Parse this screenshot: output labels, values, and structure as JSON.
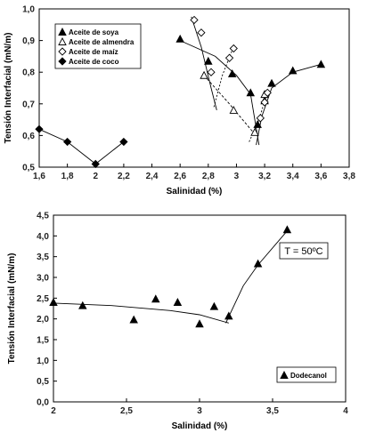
{
  "chart_data": [
    {
      "type": "scatter",
      "title": "",
      "xlabel": "Salinidad (%)",
      "ylabel": "Tensión Interfacial (mN/m)",
      "xlim": [
        1.6,
        3.8
      ],
      "ylim": [
        0.5,
        1.0
      ],
      "x_ticks": [
        "1,6",
        "1,8",
        "2",
        "2,2",
        "2,4",
        "2,6",
        "2,8",
        "3",
        "3,2",
        "3,4",
        "3,6",
        "3,8"
      ],
      "y_ticks": [
        "0,5",
        "0,6",
        "0,7",
        "0,8",
        "0,9",
        "1,0"
      ],
      "legend_position": "top-left",
      "series": [
        {
          "name": "Aceite de soya",
          "marker": "triangle-filled",
          "points": [
            [
              2.6,
              0.905
            ],
            [
              2.8,
              0.835
            ],
            [
              2.97,
              0.795
            ],
            [
              3.1,
              0.735
            ],
            [
              3.15,
              0.635
            ],
            [
              3.2,
              0.71
            ],
            [
              3.25,
              0.765
            ],
            [
              3.4,
              0.805
            ],
            [
              3.6,
              0.825
            ]
          ],
          "fit_left": [
            [
              2.6,
              0.9
            ],
            [
              2.85,
              0.85
            ],
            [
              3.0,
              0.79
            ],
            [
              3.1,
              0.73
            ],
            [
              3.16,
              0.57
            ]
          ],
          "fit_right": [
            [
              3.14,
              0.57
            ],
            [
              3.18,
              0.66
            ],
            [
              3.25,
              0.75
            ],
            [
              3.4,
              0.8
            ],
            [
              3.6,
              0.825
            ]
          ]
        },
        {
          "name": "Aceite de almendra",
          "marker": "triangle-open",
          "points": [
            [
              2.77,
              0.79
            ],
            [
              2.98,
              0.68
            ],
            [
              3.13,
              0.61
            ],
            [
              3.2,
              0.73
            ]
          ],
          "fit_left": [
            [
              2.77,
              0.79
            ],
            [
              2.95,
              0.7
            ],
            [
              3.1,
              0.62
            ],
            [
              3.14,
              0.6
            ]
          ],
          "fit_right": []
        },
        {
          "name": "Aceite de maíz",
          "marker": "diamond-open",
          "points": [
            [
              2.7,
              0.965
            ],
            [
              2.75,
              0.925
            ],
            [
              2.82,
              0.8
            ],
            [
              2.95,
              0.845
            ],
            [
              2.98,
              0.875
            ],
            [
              3.17,
              0.655
            ],
            [
              3.2,
              0.705
            ],
            [
              3.22,
              0.735
            ]
          ],
          "fit_left": [
            [
              2.68,
              0.975
            ],
            [
              2.75,
              0.88
            ],
            [
              2.82,
              0.75
            ],
            [
              2.86,
              0.68
            ]
          ],
          "fit_right": [
            [
              2.84,
              0.69
            ],
            [
              2.9,
              0.79
            ],
            [
              2.97,
              0.87
            ]
          ],
          "fit_extra": [
            [
              3.09,
              0.58
            ],
            [
              3.16,
              0.65
            ],
            [
              3.22,
              0.74
            ]
          ]
        },
        {
          "name": "Aceite de coco",
          "marker": "diamond-filled",
          "points": [
            [
              1.6,
              0.62
            ],
            [
              1.8,
              0.58
            ],
            [
              2.0,
              0.51
            ],
            [
              2.2,
              0.58
            ]
          ],
          "fit_left": [
            [
              1.6,
              0.62
            ],
            [
              1.8,
              0.58
            ],
            [
              2.0,
              0.51
            ]
          ],
          "fit_right": [
            [
              2.0,
              0.51
            ],
            [
              2.2,
              0.58
            ]
          ]
        }
      ]
    },
    {
      "type": "scatter",
      "title": "",
      "xlabel": "Salinidad (%)",
      "ylabel": "Tensión Interfacial (mN/m)",
      "xlim": [
        2.0,
        4.0
      ],
      "ylim": [
        0.0,
        4.5
      ],
      "x_ticks": [
        "2",
        "2,5",
        "3",
        "3,5",
        "4"
      ],
      "y_ticks": [
        "0,0",
        "0,5",
        "1,0",
        "1,5",
        "2,0",
        "2,5",
        "3,0",
        "3,5",
        "4,0",
        "4,5"
      ],
      "legend_position": "bottom-right",
      "annotation": "T = 50ºC",
      "series": [
        {
          "name": "Dodecanol",
          "marker": "triangle-filled",
          "points": [
            [
              2.0,
              2.4
            ],
            [
              2.2,
              2.32
            ],
            [
              2.55,
              1.98
            ],
            [
              2.7,
              2.48
            ],
            [
              2.85,
              2.4
            ],
            [
              3.0,
              1.88
            ],
            [
              3.1,
              2.3
            ],
            [
              3.2,
              2.07
            ],
            [
              3.4,
              3.33
            ],
            [
              3.6,
              4.15
            ]
          ],
          "fit_left": [
            [
              2.0,
              2.38
            ],
            [
              2.4,
              2.32
            ],
            [
              2.8,
              2.2
            ],
            [
              3.0,
              2.1
            ],
            [
              3.2,
              1.9
            ]
          ],
          "fit_right": [
            [
              3.18,
              1.9
            ],
            [
              3.3,
              2.8
            ],
            [
              3.4,
              3.3
            ],
            [
              3.6,
              4.12
            ]
          ]
        }
      ]
    }
  ]
}
